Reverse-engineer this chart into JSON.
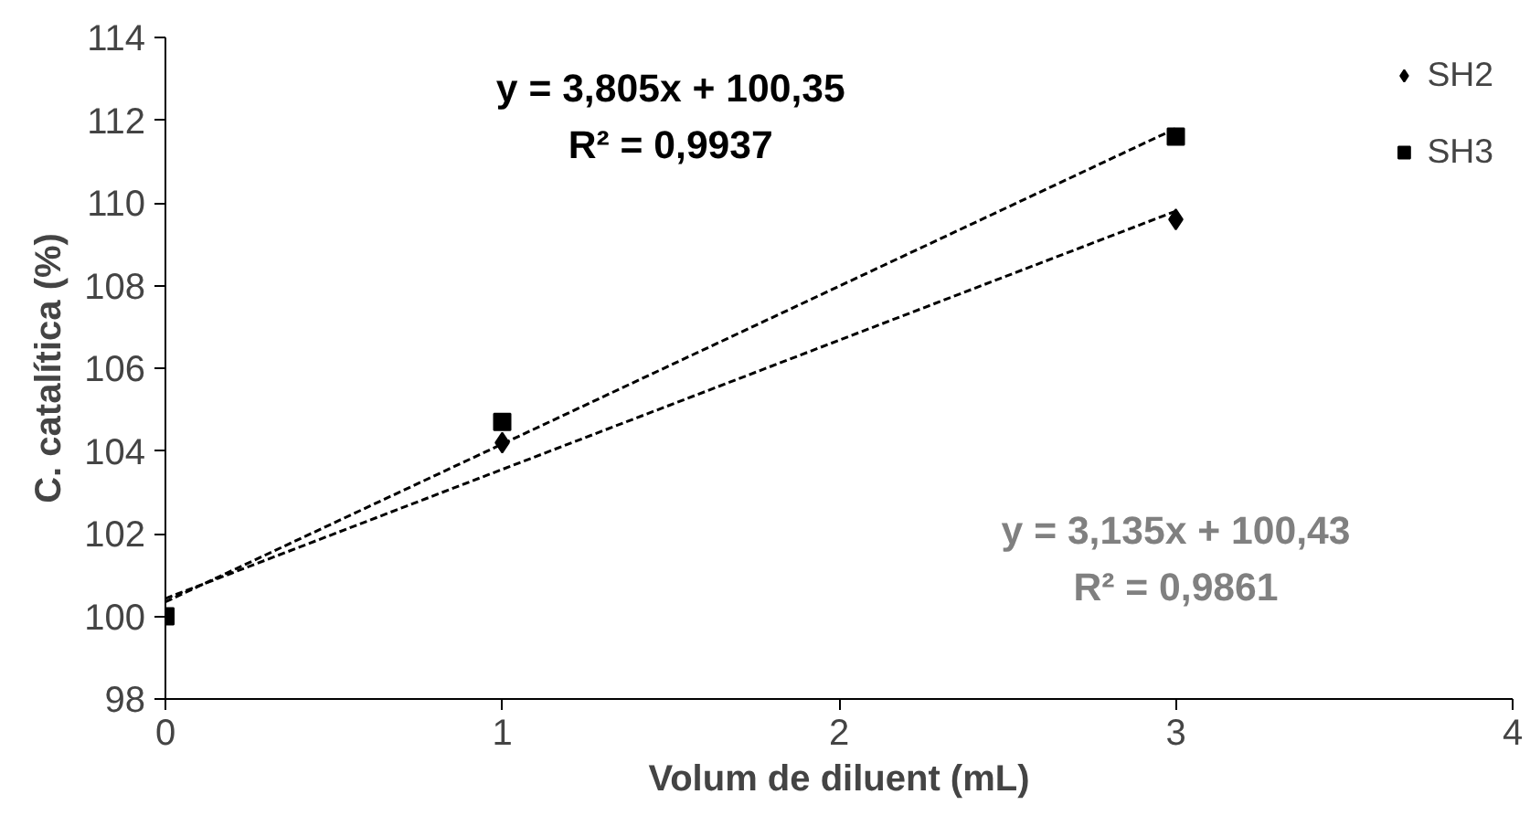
{
  "chart_data": {
    "type": "scatter",
    "xlabel": "Volum de diluent (mL)",
    "ylabel": "C. catalítica (%)",
    "annotations": [
      "y = 3,805x + 100,35\nR² = 0,9937",
      "y = 3,135x + 100,43\nR² = 0,9861"
    ],
    "xlim": [
      0,
      4
    ],
    "xticks": [
      0,
      1,
      2,
      3,
      4
    ],
    "ylim": [
      98,
      114
    ],
    "yticks": [
      98,
      100,
      102,
      104,
      106,
      108,
      110,
      112,
      114
    ],
    "grid": false,
    "legend": "top right",
    "series": [
      {
        "name": "SH2",
        "color": "#000000",
        "x": [
          1,
          3
        ],
        "values": [
          104.2,
          109.6
        ],
        "marker": "diamond"
      },
      {
        "name": "SH3",
        "color": "#000000",
        "x": [
          0,
          1,
          3
        ],
        "values": [
          100,
          104.7,
          111.6
        ],
        "marker": "square"
      },
      {
        "type": "line",
        "color": "#000000",
        "x": [
          0,
          3
        ],
        "values": [
          100.35,
          111.8
        ],
        "line_style": "dashed"
      },
      {
        "type": "line",
        "color": "#000000",
        "x": [
          0,
          3
        ],
        "values": [
          100.43,
          109.8
        ],
        "line_style": "dashed"
      }
    ]
  }
}
